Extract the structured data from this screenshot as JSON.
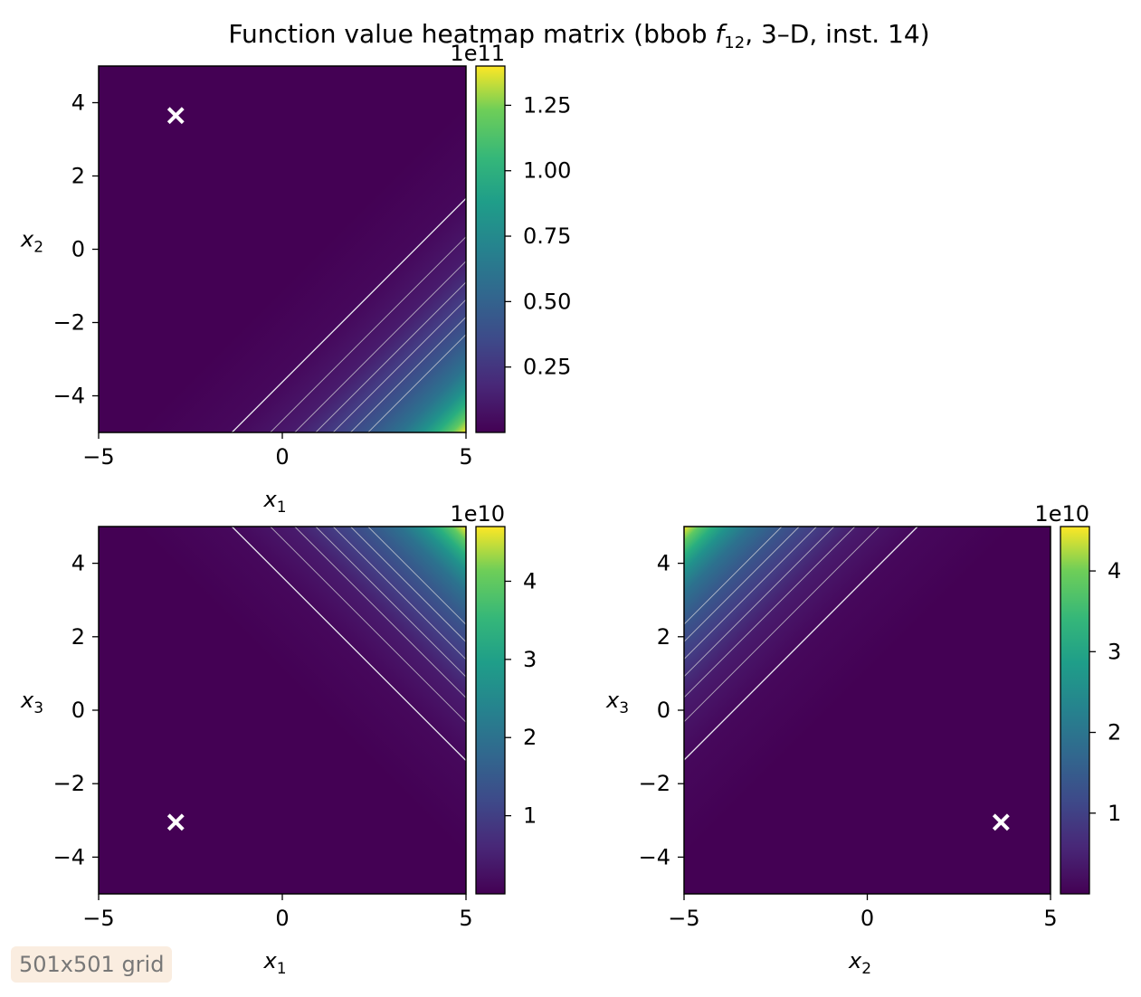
{
  "title": "Function value heatmap matrix (bbob f12, 3–D, inst. 14)",
  "title_parts": {
    "prefix": "Function value heatmap matrix (bbob ",
    "func": "f",
    "func_sub": "12",
    "suffix": ", 3–D, inst. 14)"
  },
  "annotation": "501x501 grid",
  "colors": {
    "viridis_low": "#440154",
    "viridis_mid": "#21918c",
    "viridis_high": "#fde725",
    "marker": "#ffffff",
    "contour": "#ffffff"
  },
  "chart_data": [
    {
      "type": "heatmap",
      "x": {
        "label": "x",
        "sub": "1",
        "range": [
          -5,
          5
        ],
        "ticks": [
          "−5",
          "0",
          "5"
        ],
        "tick_values": [
          -5,
          0,
          5
        ]
      },
      "y": {
        "label": "x",
        "sub": "2",
        "range": [
          -5,
          5
        ],
        "ticks": [
          "−4",
          "−2",
          "0",
          "2",
          "4"
        ],
        "tick_values": [
          -4,
          -2,
          0,
          2,
          4
        ]
      },
      "optimum": {
        "x": -2.9,
        "y": 3.65
      },
      "gradient_direction": [
        1,
        -1
      ],
      "colorbar": {
        "offset": "1e11",
        "range": [
          0,
          1.4
        ],
        "ticks": [
          "0.25",
          "0.50",
          "0.75",
          "1.00",
          "1.25"
        ],
        "tick_values": [
          0.25,
          0.5,
          0.75,
          1.0,
          1.25
        ]
      }
    },
    {
      "type": "heatmap",
      "x": {
        "label": "x",
        "sub": "1",
        "range": [
          -5,
          5
        ],
        "ticks": [
          "−5",
          "0",
          "5"
        ],
        "tick_values": [
          -5,
          0,
          5
        ]
      },
      "y": {
        "label": "x",
        "sub": "3",
        "range": [
          -5,
          5
        ],
        "ticks": [
          "−4",
          "−2",
          "0",
          "2",
          "4"
        ],
        "tick_values": [
          -4,
          -2,
          0,
          2,
          4
        ]
      },
      "optimum": {
        "x": -2.9,
        "y": -3.05
      },
      "gradient_direction": [
        1,
        1
      ],
      "colorbar": {
        "offset": "1e10",
        "range": [
          0,
          4.7
        ],
        "ticks": [
          "1",
          "2",
          "3",
          "4"
        ],
        "tick_values": [
          1,
          2,
          3,
          4
        ]
      }
    },
    {
      "type": "heatmap",
      "x": {
        "label": "x",
        "sub": "2",
        "range": [
          -5,
          5
        ],
        "ticks": [
          "−5",
          "0",
          "5"
        ],
        "tick_values": [
          -5,
          0,
          5
        ]
      },
      "y": {
        "label": "x",
        "sub": "3",
        "range": [
          -5,
          5
        ],
        "ticks": [
          "−4",
          "−2",
          "0",
          "2",
          "4"
        ],
        "tick_values": [
          -4,
          -2,
          0,
          2,
          4
        ]
      },
      "optimum": {
        "x": 3.65,
        "y": -3.05
      },
      "gradient_direction": [
        -1,
        1
      ],
      "colorbar": {
        "offset": "1e10",
        "range": [
          0,
          4.55
        ],
        "ticks": [
          "1",
          "2",
          "3",
          "4"
        ],
        "tick_values": [
          1,
          2,
          3,
          4
        ]
      }
    }
  ]
}
